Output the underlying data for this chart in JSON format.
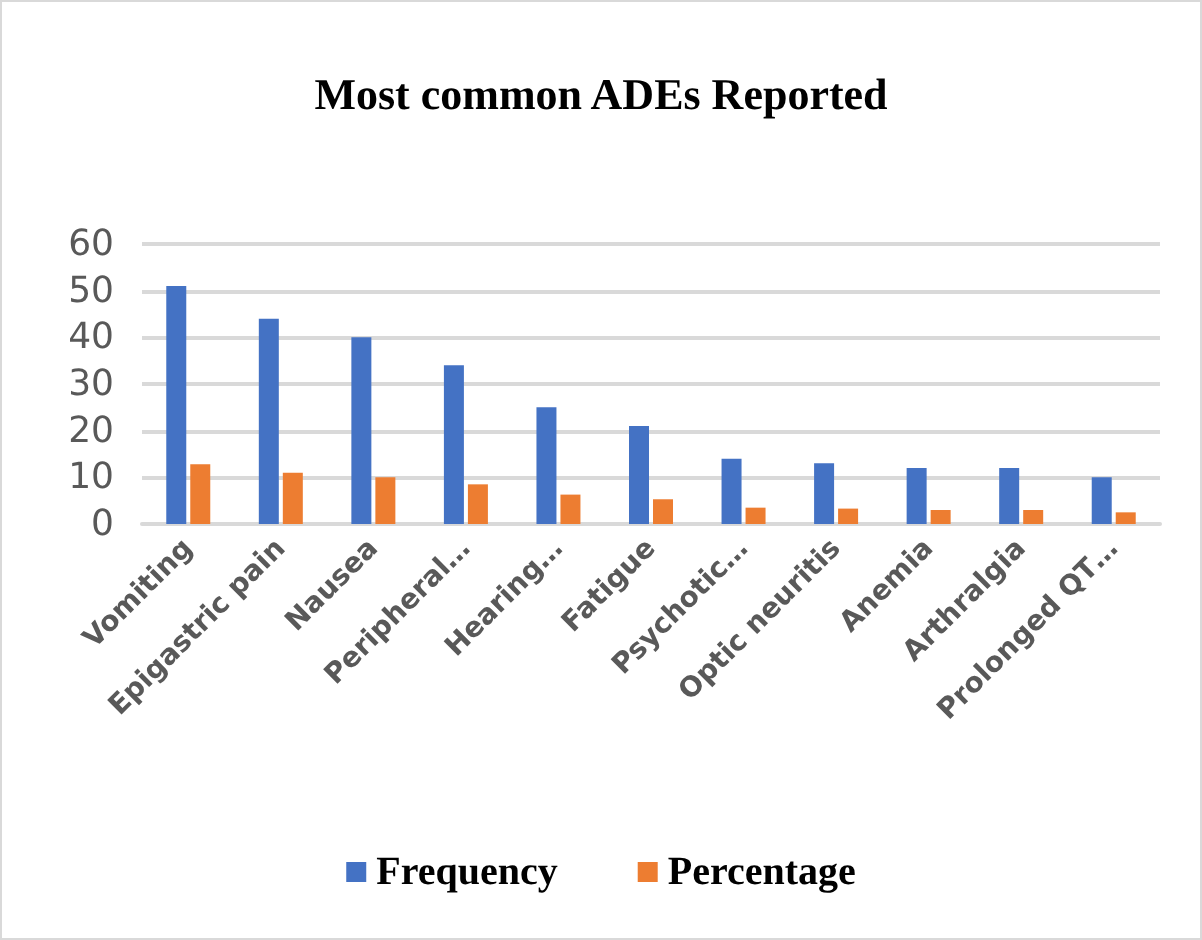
{
  "chart_data": {
    "type": "bar",
    "title": "Most common ADEs Reported",
    "categories": [
      "Vomiting",
      "Epigastric pain",
      "Nausea",
      "Peripheral…",
      "Hearing…",
      "Fatigue",
      "Psychotic…",
      "Optic neuritis",
      "Anemia",
      "Arthralgia",
      "Prolonged QT…"
    ],
    "series": [
      {
        "name": "Frequency",
        "color": "#4472c4",
        "values": [
          51,
          44,
          40,
          34,
          25,
          21,
          14,
          13,
          12,
          12,
          10
        ]
      },
      {
        "name": "Percentage",
        "color": "#ed7d31",
        "values": [
          12.8,
          11,
          10,
          8.5,
          6.3,
          5.3,
          3.5,
          3.3,
          3,
          3,
          2.5
        ]
      }
    ],
    "ylim": [
      0,
      60
    ],
    "yticks": [
      0,
      10,
      20,
      30,
      40,
      50,
      60
    ],
    "grid": "y",
    "legend": "bottom"
  }
}
